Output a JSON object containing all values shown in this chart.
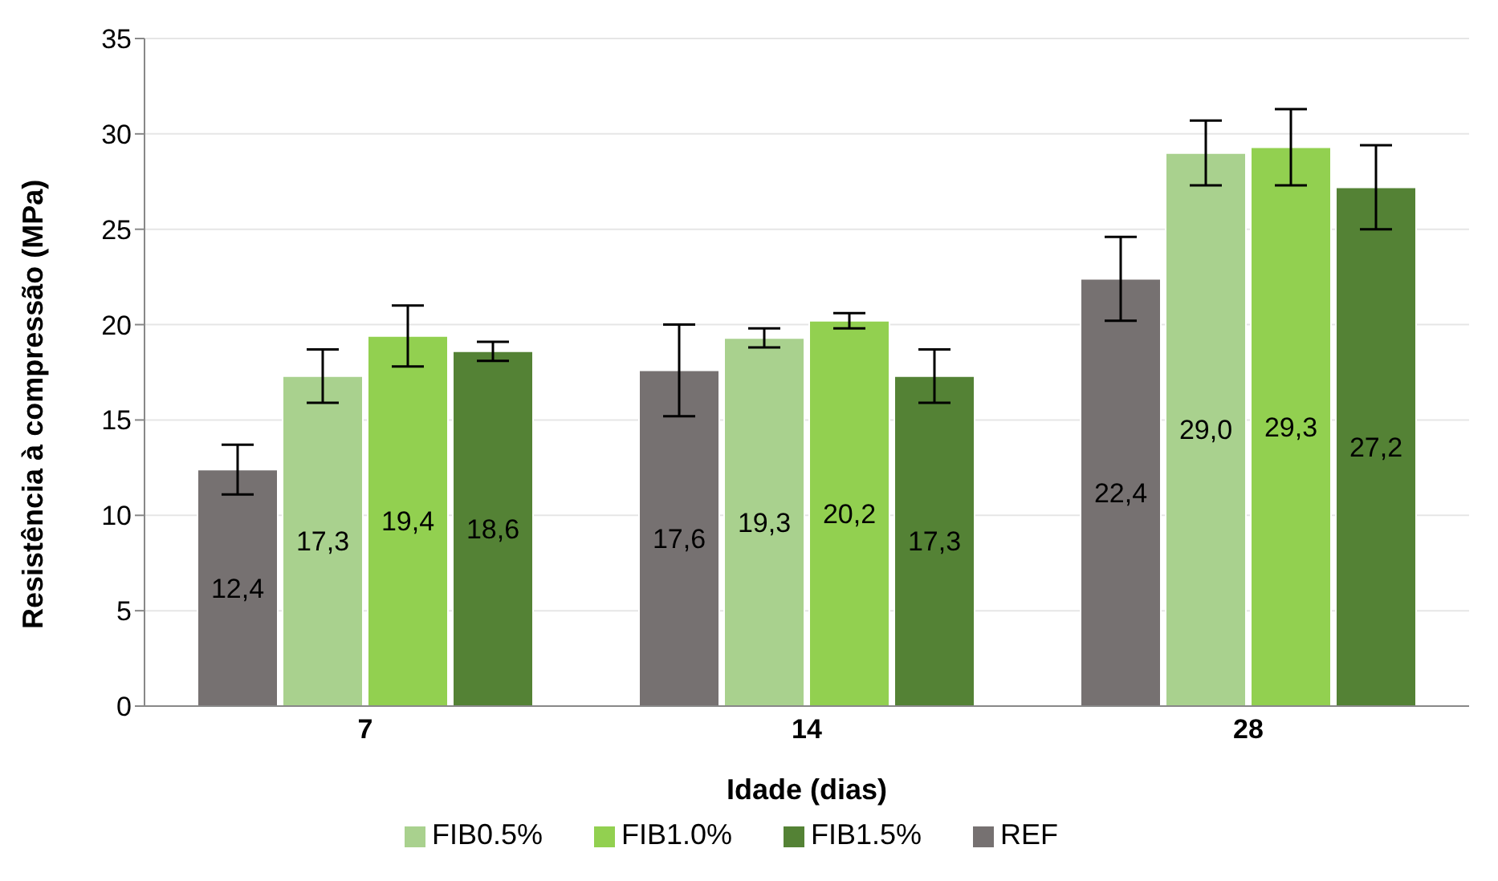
{
  "chart_data": {
    "type": "bar",
    "xlabel": "Idade (dias)",
    "ylabel": "Resistência à compressão (MPa)",
    "categories": [
      "7",
      "14",
      "28"
    ],
    "series": [
      {
        "name": "REF",
        "color": "#767171",
        "values": [
          12.4,
          17.6,
          22.4
        ],
        "errors": [
          1.3,
          2.4,
          2.2
        ],
        "value_labels": [
          "12,4",
          "17,6",
          "22,4"
        ]
      },
      {
        "name": "FIB0.5%",
        "color": "#a9d18e",
        "values": [
          17.3,
          19.3,
          29.0
        ],
        "errors": [
          1.4,
          0.5,
          1.7
        ],
        "value_labels": [
          "17,3",
          "19,3",
          "29,0"
        ]
      },
      {
        "name": "FIB1.0%",
        "color": "#92d050",
        "values": [
          19.4,
          20.2,
          29.3
        ],
        "errors": [
          1.6,
          0.4,
          2.0
        ],
        "value_labels": [
          "19,4",
          "20,2",
          "29,3"
        ]
      },
      {
        "name": "FIB1.5%",
        "color": "#548235",
        "values": [
          18.6,
          17.3,
          27.2
        ],
        "errors": [
          0.5,
          1.4,
          2.2
        ],
        "value_labels": [
          "18,6",
          "17,3",
          "27,2"
        ]
      }
    ],
    "ylim": [
      0,
      35
    ],
    "yticks": [
      0,
      5,
      10,
      15,
      20,
      25,
      30,
      35
    ],
    "grid": "y",
    "legend": "bottom"
  }
}
